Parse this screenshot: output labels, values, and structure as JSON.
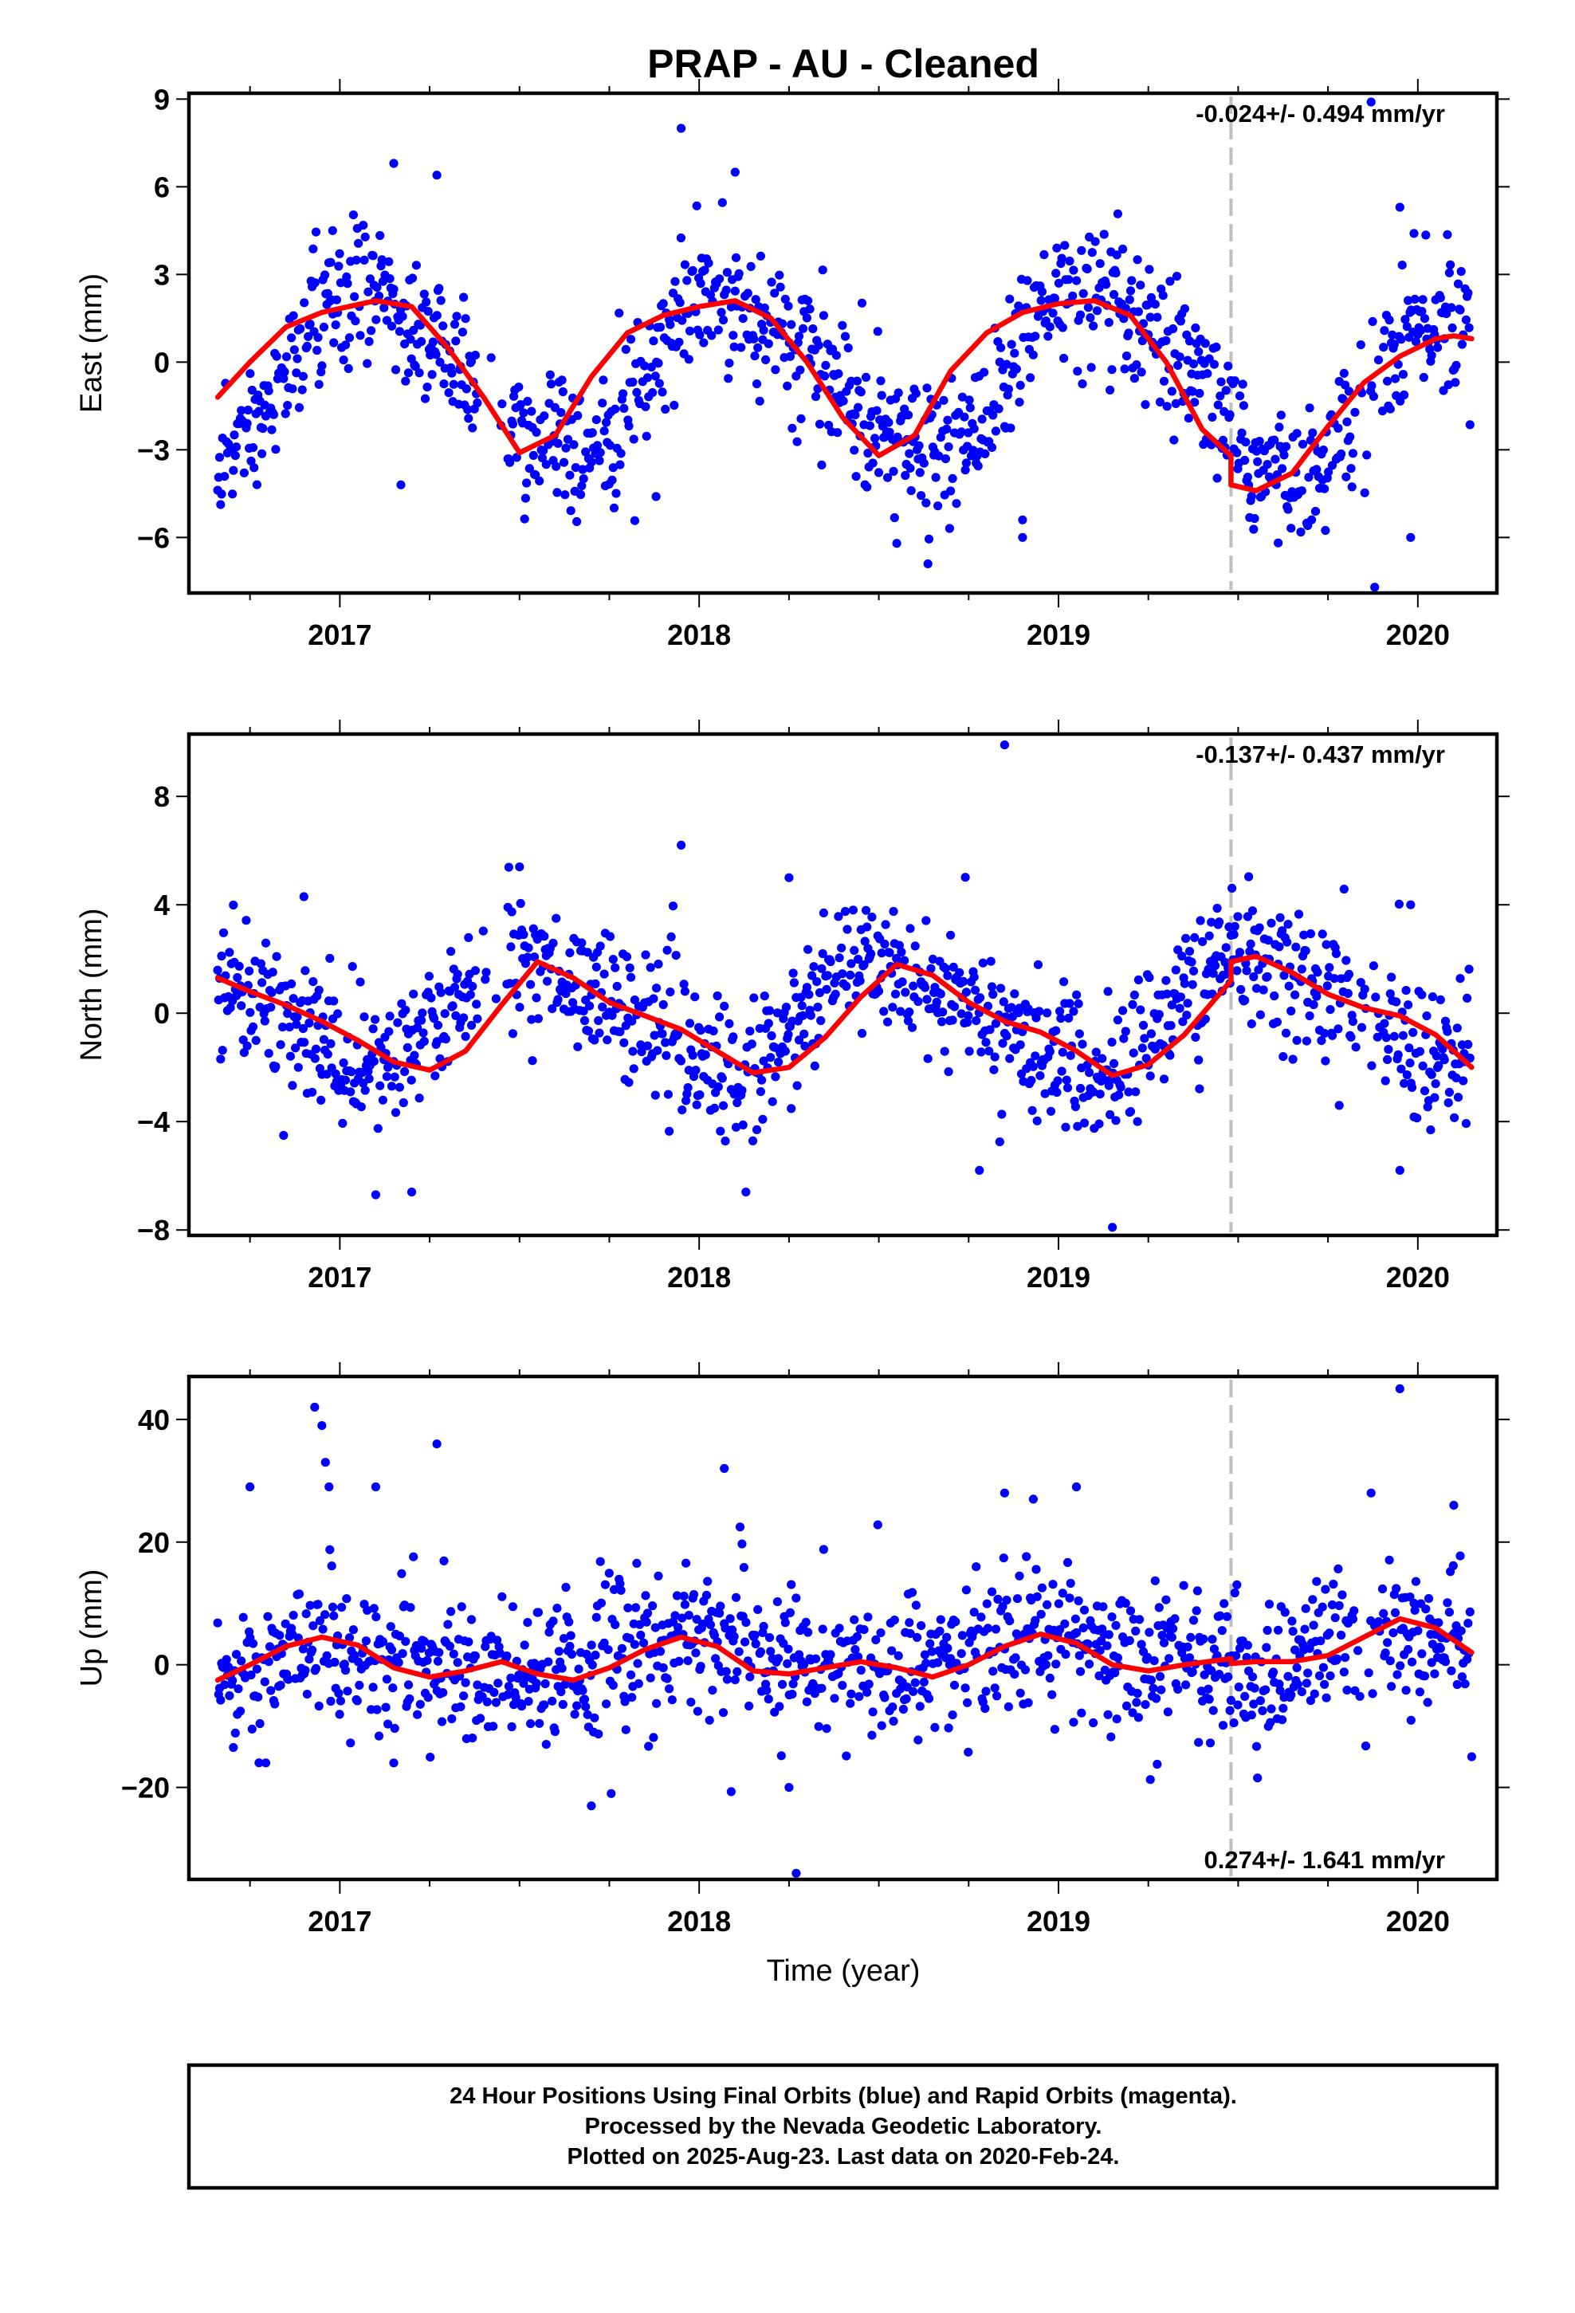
{
  "chart_title": "PRAP  - AU - Cleaned",
  "x_axis_label": "Time (year)",
  "footer": {
    "line1": "24 Hour Positions Using Final Orbits (blue) and Rapid Orbits (magenta).",
    "line2": "Processed by the Nevada Geodetic Laboratory.",
    "line3": "Plotted on 2025-Aug-23. Last data on 2020-Feb-24."
  },
  "colors": {
    "points": "#0000ff",
    "trend": "#ff0000",
    "offset_line": "#c0c0c0",
    "frame": "#000000"
  },
  "chart_data": [
    {
      "type": "scatter",
      "name": "east",
      "ylabel": "East (mm)",
      "rate_label": "-0.024+/- 0.494 mm/yr",
      "rate_position": "top-right",
      "xlim": [
        2016.58,
        2020.22
      ],
      "ylim": [
        -7.9,
        9.2
      ],
      "xticks": [
        2017,
        2018,
        2019,
        2020
      ],
      "yticks": [
        -6,
        -3,
        0,
        3,
        6,
        9
      ],
      "ytick_labels": [
        "−6",
        "−3",
        "0",
        "3",
        "6",
        "9"
      ],
      "offset_epoch": 2019.48,
      "model": {
        "mean": -0.4,
        "rate": -0.024,
        "annual_amp": 2.6,
        "annual_phase_peak": 2018.1,
        "semiannual_amp": 0.45,
        "semiannual_phase": 0.3,
        "offset": -0.9,
        "scatter": 1.2
      },
      "trend": [
        [
          2016.66,
          -1.2
        ],
        [
          2016.75,
          0.0
        ],
        [
          2016.85,
          1.2
        ],
        [
          2016.95,
          1.7
        ],
        [
          2017.1,
          2.1
        ],
        [
          2017.2,
          1.9
        ],
        [
          2017.3,
          0.5
        ],
        [
          2017.4,
          -1.2
        ],
        [
          2017.5,
          -3.1
        ],
        [
          2017.6,
          -2.5
        ],
        [
          2017.7,
          -0.5
        ],
        [
          2017.8,
          1.0
        ],
        [
          2017.9,
          1.6
        ],
        [
          2018.0,
          1.9
        ],
        [
          2018.1,
          2.1
        ],
        [
          2018.2,
          1.5
        ],
        [
          2018.3,
          0.0
        ],
        [
          2018.4,
          -1.9
        ],
        [
          2018.5,
          -3.2
        ],
        [
          2018.6,
          -2.5
        ],
        [
          2018.7,
          -0.3
        ],
        [
          2018.8,
          1.0
        ],
        [
          2018.9,
          1.7
        ],
        [
          2019.0,
          2.0
        ],
        [
          2019.1,
          2.1
        ],
        [
          2019.2,
          1.6
        ],
        [
          2019.3,
          0.0
        ],
        [
          2019.4,
          -2.3
        ],
        [
          2019.48,
          -3.2
        ],
        [
          2019.48,
          -4.2
        ],
        [
          2019.55,
          -4.4
        ],
        [
          2019.65,
          -3.8
        ],
        [
          2019.75,
          -2.2
        ],
        [
          2019.85,
          -0.7
        ],
        [
          2019.95,
          0.2
        ],
        [
          2020.05,
          0.8
        ],
        [
          2020.1,
          0.9
        ],
        [
          2020.15,
          0.8
        ]
      ],
      "outliers": [
        [
          2016.98,
          4.5
        ],
        [
          2017.15,
          6.8
        ],
        [
          2017.27,
          6.4
        ],
        [
          2017.95,
          8.0
        ],
        [
          2018.1,
          6.5
        ],
        [
          2018.55,
          -6.2
        ],
        [
          2018.9,
          -6.0
        ],
        [
          2019.95,
          5.3
        ],
        [
          2019.88,
          -7.7
        ],
        [
          2019.98,
          -6.0
        ],
        [
          2019.87,
          8.9
        ],
        [
          2018.9,
          -5.4
        ],
        [
          2017.17,
          -4.2
        ],
        [
          2017.88,
          -4.6
        ]
      ]
    },
    {
      "type": "scatter",
      "name": "north",
      "ylabel": "North (mm)",
      "rate_label": "-0.137+/- 0.437 mm/yr",
      "rate_position": "top-right",
      "xlim": [
        2016.58,
        2020.22
      ],
      "ylim": [
        -8.2,
        10.3
      ],
      "xticks": [
        2017,
        2018,
        2019,
        2020
      ],
      "yticks": [
        -8,
        -4,
        0,
        4,
        8
      ],
      "ytick_labels": [
        "−8",
        "−4",
        "0",
        "4",
        "8"
      ],
      "offset_epoch": 2019.48,
      "model": {
        "mean": -0.1,
        "rate": -0.137,
        "annual_amp": 1.9,
        "annual_phase_peak": 2017.55,
        "semiannual_amp": 0.4,
        "semiannual_phase": 1.2,
        "offset": 0.6,
        "scatter": 1.3
      },
      "trend": [
        [
          2016.66,
          1.3
        ],
        [
          2016.75,
          0.8
        ],
        [
          2016.85,
          0.3
        ],
        [
          2016.95,
          -0.3
        ],
        [
          2017.05,
          -1.0
        ],
        [
          2017.15,
          -1.8
        ],
        [
          2017.25,
          -2.1
        ],
        [
          2017.35,
          -1.4
        ],
        [
          2017.45,
          0.3
        ],
        [
          2017.55,
          1.9
        ],
        [
          2017.65,
          1.3
        ],
        [
          2017.75,
          0.4
        ],
        [
          2017.85,
          -0.1
        ],
        [
          2017.95,
          -0.6
        ],
        [
          2018.05,
          -1.4
        ],
        [
          2018.15,
          -2.2
        ],
        [
          2018.25,
          -2.0
        ],
        [
          2018.35,
          -0.9
        ],
        [
          2018.45,
          0.6
        ],
        [
          2018.55,
          1.8
        ],
        [
          2018.65,
          1.4
        ],
        [
          2018.75,
          0.4
        ],
        [
          2018.85,
          -0.3
        ],
        [
          2018.95,
          -0.7
        ],
        [
          2019.05,
          -1.4
        ],
        [
          2019.15,
          -2.3
        ],
        [
          2019.25,
          -1.9
        ],
        [
          2019.35,
          -0.8
        ],
        [
          2019.48,
          1.2
        ],
        [
          2019.48,
          1.9
        ],
        [
          2019.55,
          2.1
        ],
        [
          2019.65,
          1.5
        ],
        [
          2019.75,
          0.7
        ],
        [
          2019.85,
          0.2
        ],
        [
          2019.95,
          -0.1
        ],
        [
          2020.05,
          -0.8
        ],
        [
          2020.15,
          -2.0
        ]
      ],
      "outliers": [
        [
          2016.9,
          4.3
        ],
        [
          2017.5,
          5.4
        ],
        [
          2017.95,
          6.2
        ],
        [
          2018.25,
          5.0
        ],
        [
          2018.85,
          9.9
        ],
        [
          2018.13,
          -6.6
        ],
        [
          2018.78,
          -5.8
        ],
        [
          2019.15,
          -7.9
        ],
        [
          2019.95,
          -5.8
        ],
        [
          2017.1,
          -6.7
        ],
        [
          2017.2,
          -6.6
        ],
        [
          2019.98,
          4.0
        ]
      ]
    },
    {
      "type": "scatter",
      "name": "up",
      "ylabel": "Up (mm)",
      "rate_label": "0.274+/- 1.641 mm/yr",
      "rate_position": "bottom-right",
      "xlim": [
        2016.58,
        2020.22
      ],
      "ylim": [
        -35,
        47
      ],
      "xticks": [
        2017,
        2018,
        2019,
        2020
      ],
      "yticks": [
        -20,
        0,
        20,
        40
      ],
      "ytick_labels": [
        "−20",
        "0",
        "20",
        "40"
      ],
      "offset_epoch": 2019.48,
      "model": {
        "mean": 1.0,
        "rate": 0.274,
        "annual_amp": 2.6,
        "annual_phase_peak": 2016.95,
        "semiannual_amp": 0.8,
        "semiannual_phase": 0.5,
        "offset": 0.0,
        "scatter": 5.5
      },
      "trend": [
        [
          2016.66,
          -2.5
        ],
        [
          2016.75,
          0.0
        ],
        [
          2016.85,
          3.0
        ],
        [
          2016.95,
          4.5
        ],
        [
          2017.05,
          3.2
        ],
        [
          2017.15,
          -0.5
        ],
        [
          2017.25,
          -2.0
        ],
        [
          2017.35,
          -1.0
        ],
        [
          2017.45,
          0.5
        ],
        [
          2017.55,
          -1.5
        ],
        [
          2017.65,
          -2.5
        ],
        [
          2017.75,
          -0.5
        ],
        [
          2017.85,
          2.5
        ],
        [
          2017.95,
          4.5
        ],
        [
          2018.05,
          3.0
        ],
        [
          2018.15,
          -1.0
        ],
        [
          2018.25,
          -1.5
        ],
        [
          2018.35,
          -0.5
        ],
        [
          2018.45,
          0.5
        ],
        [
          2018.55,
          -0.5
        ],
        [
          2018.65,
          -2.0
        ],
        [
          2018.75,
          0.0
        ],
        [
          2018.85,
          3.0
        ],
        [
          2018.95,
          5.0
        ],
        [
          2019.05,
          3.5
        ],
        [
          2019.15,
          0.0
        ],
        [
          2019.25,
          -1.0
        ],
        [
          2019.35,
          0.0
        ],
        [
          2019.48,
          1.0
        ],
        [
          2019.48,
          0.2
        ],
        [
          2019.55,
          0.5
        ],
        [
          2019.65,
          0.5
        ],
        [
          2019.75,
          1.5
        ],
        [
          2019.85,
          4.5
        ],
        [
          2019.95,
          7.5
        ],
        [
          2020.05,
          6.0
        ],
        [
          2020.15,
          2.0
        ]
      ],
      "outliers": [
        [
          2016.93,
          42
        ],
        [
          2016.95,
          39
        ],
        [
          2016.96,
          33
        ],
        [
          2016.97,
          29
        ],
        [
          2017.1,
          29
        ],
        [
          2017.27,
          36
        ],
        [
          2017.7,
          -23
        ],
        [
          2018.07,
          32
        ],
        [
          2018.25,
          -20
        ],
        [
          2018.27,
          -34
        ],
        [
          2018.85,
          28
        ],
        [
          2018.93,
          27
        ],
        [
          2019.05,
          29
        ],
        [
          2019.95,
          45
        ],
        [
          2019.87,
          28
        ],
        [
          2020.1,
          26
        ],
        [
          2020.15,
          -15
        ],
        [
          2017.15,
          -16
        ],
        [
          2016.75,
          29
        ]
      ]
    }
  ]
}
